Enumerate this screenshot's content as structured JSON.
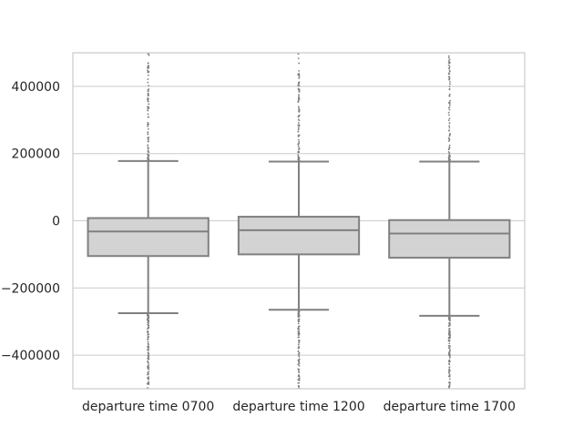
{
  "chart_data": {
    "type": "box",
    "title": "",
    "xlabel": "",
    "ylabel": "",
    "ylim": [
      -500000,
      500000
    ],
    "yticks": [
      -400000,
      -200000,
      0,
      200000,
      400000
    ],
    "ytick_labels": [
      "−400000",
      "−200000",
      "0",
      "200000",
      "400000"
    ],
    "grid": "horizontal",
    "categories": [
      "departure time 0700",
      "departure time 1200",
      "departure time 1700"
    ],
    "boxes": [
      {
        "category": "departure time 0700",
        "whisker_low": -275000,
        "q1": -105000,
        "median": -32000,
        "q3": 8000,
        "whisker_high": 178000
      },
      {
        "category": "departure time 1200",
        "whisker_low": -265000,
        "q1": -100000,
        "median": -28000,
        "q3": 12000,
        "whisker_high": 176000
      },
      {
        "category": "departure time 1700",
        "whisker_low": -283000,
        "q1": -110000,
        "median": -38000,
        "q3": 2000,
        "whisker_high": 176000
      }
    ],
    "colors": {
      "box_fill": "#d3d3d3",
      "box_line": "#808080",
      "grid": "#cccccc",
      "frame": "#cccccc",
      "flier": "#808080"
    }
  }
}
